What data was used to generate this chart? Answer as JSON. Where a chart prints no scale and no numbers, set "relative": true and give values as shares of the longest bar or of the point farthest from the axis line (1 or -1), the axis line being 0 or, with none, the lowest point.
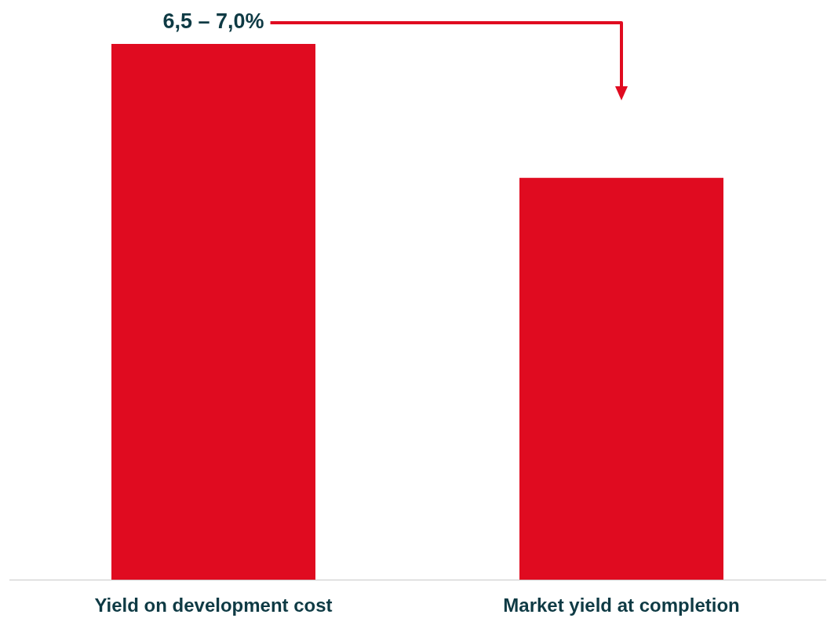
{
  "chart_data": {
    "type": "bar",
    "relative": true,
    "categories": [
      "Yield on development cost",
      "Market yield at completion"
    ],
    "values": [
      1,
      0.75
    ],
    "color": "#e00b20",
    "grid": false,
    "legend": false,
    "annotations": [
      "6,5 – 7,0%"
    ]
  }
}
